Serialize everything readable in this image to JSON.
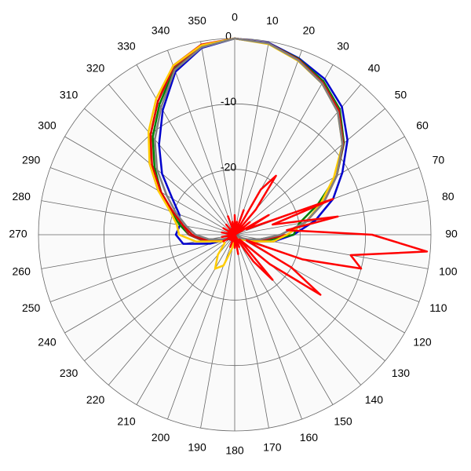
{
  "chart_data": {
    "type": "polar",
    "rlim": [
      -30,
      0
    ],
    "rticks": [
      0,
      -10,
      -20
    ],
    "thetaticks": [
      0,
      10,
      20,
      30,
      40,
      50,
      60,
      70,
      80,
      90,
      100,
      110,
      120,
      130,
      140,
      150,
      160,
      170,
      180,
      190,
      200,
      210,
      220,
      230,
      240,
      250,
      260,
      270,
      280,
      290,
      300,
      310,
      320,
      330,
      340,
      350
    ],
    "grid": true,
    "theta": [
      0,
      10,
      20,
      30,
      40,
      50,
      60,
      70,
      80,
      90,
      100,
      110,
      120,
      130,
      140,
      150,
      160,
      170,
      180,
      190,
      200,
      210,
      220,
      230,
      240,
      250,
      260,
      270,
      280,
      290,
      300,
      310,
      320,
      330,
      340,
      350
    ],
    "series": [
      {
        "color": "#0000cc",
        "values": [
          0,
          -0.2,
          -1.3,
          -2.5,
          -4.5,
          -7.5,
          -11,
          -14,
          -17.5,
          -21,
          -24,
          -27,
          -28.5,
          -29,
          -29.5,
          -29.5,
          -29.5,
          -29.5,
          -29.5,
          -29.5,
          -29.5,
          -29.5,
          -29.5,
          -29,
          -28.5,
          -26,
          -22,
          -21,
          -21.5,
          -21,
          -19,
          -15.5,
          -12,
          -8,
          -3.5,
          -1
        ]
      },
      {
        "color": "#008000",
        "values": [
          0,
          -0.3,
          -1.4,
          -2.9,
          -5,
          -8.2,
          -12,
          -16.5,
          -20,
          -21,
          -25,
          -27.5,
          -28.5,
          -29,
          -29.5,
          -29.5,
          -29.5,
          -29.5,
          -29.5,
          -29.5,
          -29.5,
          -29.5,
          -29.5,
          -29,
          -28.5,
          -27,
          -25,
          -23,
          -21.5,
          -19.5,
          -17,
          -14,
          -10.5,
          -7,
          -3,
          -0.8
        ]
      },
      {
        "color": "#a52a2a",
        "values": [
          0,
          -0.3,
          -1.5,
          -3.1,
          -5.2,
          -8.3,
          -12,
          -15.5,
          -19,
          -22,
          -25.5,
          -27.5,
          -28.5,
          -29,
          -29.5,
          -29.5,
          -29.5,
          -29.5,
          -29.5,
          -29.5,
          -29.5,
          -29.5,
          -29.5,
          -29,
          -28.5,
          -27,
          -25,
          -23,
          -22,
          -20,
          -16.5,
          -13,
          -10,
          -6.5,
          -2.8,
          -0.7
        ]
      },
      {
        "color": "#e00000",
        "values": [
          0,
          -0.3,
          -1.5,
          -3.2,
          -5.3,
          -8.5,
          -12,
          -15.5,
          -19,
          -22,
          -26,
          -28,
          -29,
          -29.5,
          -29.5,
          -29.5,
          -29.5,
          -29.5,
          -29.5,
          -29.5,
          -29.5,
          -29.5,
          -29.5,
          -29.5,
          -29,
          -27.5,
          -25.5,
          -23.5,
          -22,
          -20,
          -17,
          -13.5,
          -10,
          -6.5,
          -2.5,
          -0.5
        ]
      },
      {
        "color": "#ffcc00",
        "values": [
          0,
          -0.4,
          -1.7,
          -3.3,
          -5.5,
          -8.5,
          -12.5,
          -16,
          -19,
          -22,
          -24,
          -27,
          -28.5,
          -29,
          -29.5,
          -29.5,
          -29.5,
          -29.5,
          -29.5,
          -28,
          -25,
          -24,
          -26,
          -28,
          -28,
          -27,
          -24,
          -21.5,
          -21,
          -19.5,
          -16.5,
          -13,
          -9.5,
          -6,
          -2.5,
          -0.6
        ]
      },
      {
        "color": "#808080",
        "values": [
          0,
          -0.3,
          -1.6,
          -3.3,
          -5.5,
          -8.5,
          -12,
          -15.5,
          -19,
          -23,
          -26,
          -28,
          -29,
          -29.5,
          -29.5,
          -29.5,
          -29.5,
          -29.5,
          -29.5,
          -29.5,
          -29.5,
          -29.5,
          -29.5,
          -29.5,
          -29,
          -28,
          -26,
          -24,
          -22.5,
          -20.5,
          -18,
          -14.5,
          -11,
          -7.5,
          -3.2,
          -0.9
        ]
      },
      {
        "color": "#ff0000",
        "theta": [
          0,
          5,
          10,
          15,
          20,
          25,
          30,
          35,
          40,
          45,
          50,
          55,
          60,
          65,
          70,
          75,
          80,
          85,
          90,
          95,
          100,
          105,
          110,
          115,
          120,
          125,
          130,
          135,
          140,
          145,
          150,
          155,
          160,
          165,
          170,
          175,
          180,
          185,
          190,
          195,
          200,
          205,
          210,
          215,
          220,
          225,
          230,
          235,
          240,
          245,
          250,
          255,
          260,
          265,
          270,
          275,
          280,
          285,
          290,
          295,
          300,
          305,
          310,
          315,
          320,
          325,
          330,
          335,
          340,
          345,
          350,
          355
        ],
        "values": [
          -27,
          -29,
          -28,
          -30,
          -26,
          -30,
          -22,
          -19,
          -25,
          -30,
          -27,
          -30,
          -24,
          -28,
          -14,
          -24,
          -14,
          -22,
          -9,
          -0.5,
          -12,
          -10,
          -19,
          -28,
          -20,
          -14,
          -23,
          -29,
          -21,
          -25,
          -29,
          -30,
          -28,
          -30,
          -27,
          -30,
          -28,
          -30,
          -29,
          -30,
          -28,
          -30,
          -29,
          -30,
          -29,
          -30,
          -29,
          -30,
          -28,
          -30,
          -29,
          -30,
          -28,
          -30,
          -29,
          -30,
          -28,
          -30,
          -29,
          -30,
          -28,
          -30,
          -29,
          -30,
          -28,
          -30,
          -29,
          -30,
          -27,
          -30,
          -28,
          -30
        ]
      }
    ]
  }
}
